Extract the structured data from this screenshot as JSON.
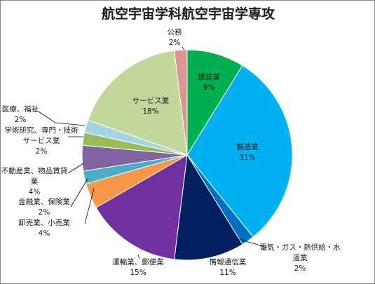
{
  "chart_data": {
    "type": "pie",
    "title": "航空宇宙学科航空宇宙学専攻",
    "slices": [
      {
        "label": [
          "建設業"
        ],
        "value_label": "9%",
        "value": 9,
        "color": "#00b050"
      },
      {
        "label": [
          "製造業"
        ],
        "value_label": "31%",
        "value": 31,
        "color": "#00b0f0"
      },
      {
        "label": [
          "電気・ガス・熱供給・水",
          "道業"
        ],
        "value_label": "2%",
        "value": 2,
        "color": "#0070c0"
      },
      {
        "label": [
          "情報通信業"
        ],
        "value_label": "11%",
        "value": 11,
        "color": "#002060"
      },
      {
        "label": [
          "運輸業、郵便業"
        ],
        "value_label": "15%",
        "value": 15,
        "color": "#7030a0"
      },
      {
        "label": [
          "卸売業、小売業"
        ],
        "value_label": "4%",
        "value": 4,
        "color": "#f79646"
      },
      {
        "label": [
          "金融業、保険業"
        ],
        "value_label": "2%",
        "value": 2,
        "color": "#4bacc6"
      },
      {
        "label": [
          "不動産業、物品賃貸",
          "業"
        ],
        "value_label": "4%",
        "value": 4,
        "color": "#8064a2"
      },
      {
        "label": [
          "学術研究、専門・技術",
          "サービス業"
        ],
        "value_label": "2%",
        "value": 2,
        "color": "#9bbb59"
      },
      {
        "label": [
          "医療、福祉"
        ],
        "value_label": "2%",
        "value": 2,
        "color": "#a5d5e2"
      },
      {
        "label": [
          "サービス業"
        ],
        "value_label": "18%",
        "value": 18,
        "color": "#c4d79b"
      },
      {
        "label": [
          "公務"
        ],
        "value_label": "2%",
        "value": 2,
        "color": "#d99694"
      }
    ]
  }
}
